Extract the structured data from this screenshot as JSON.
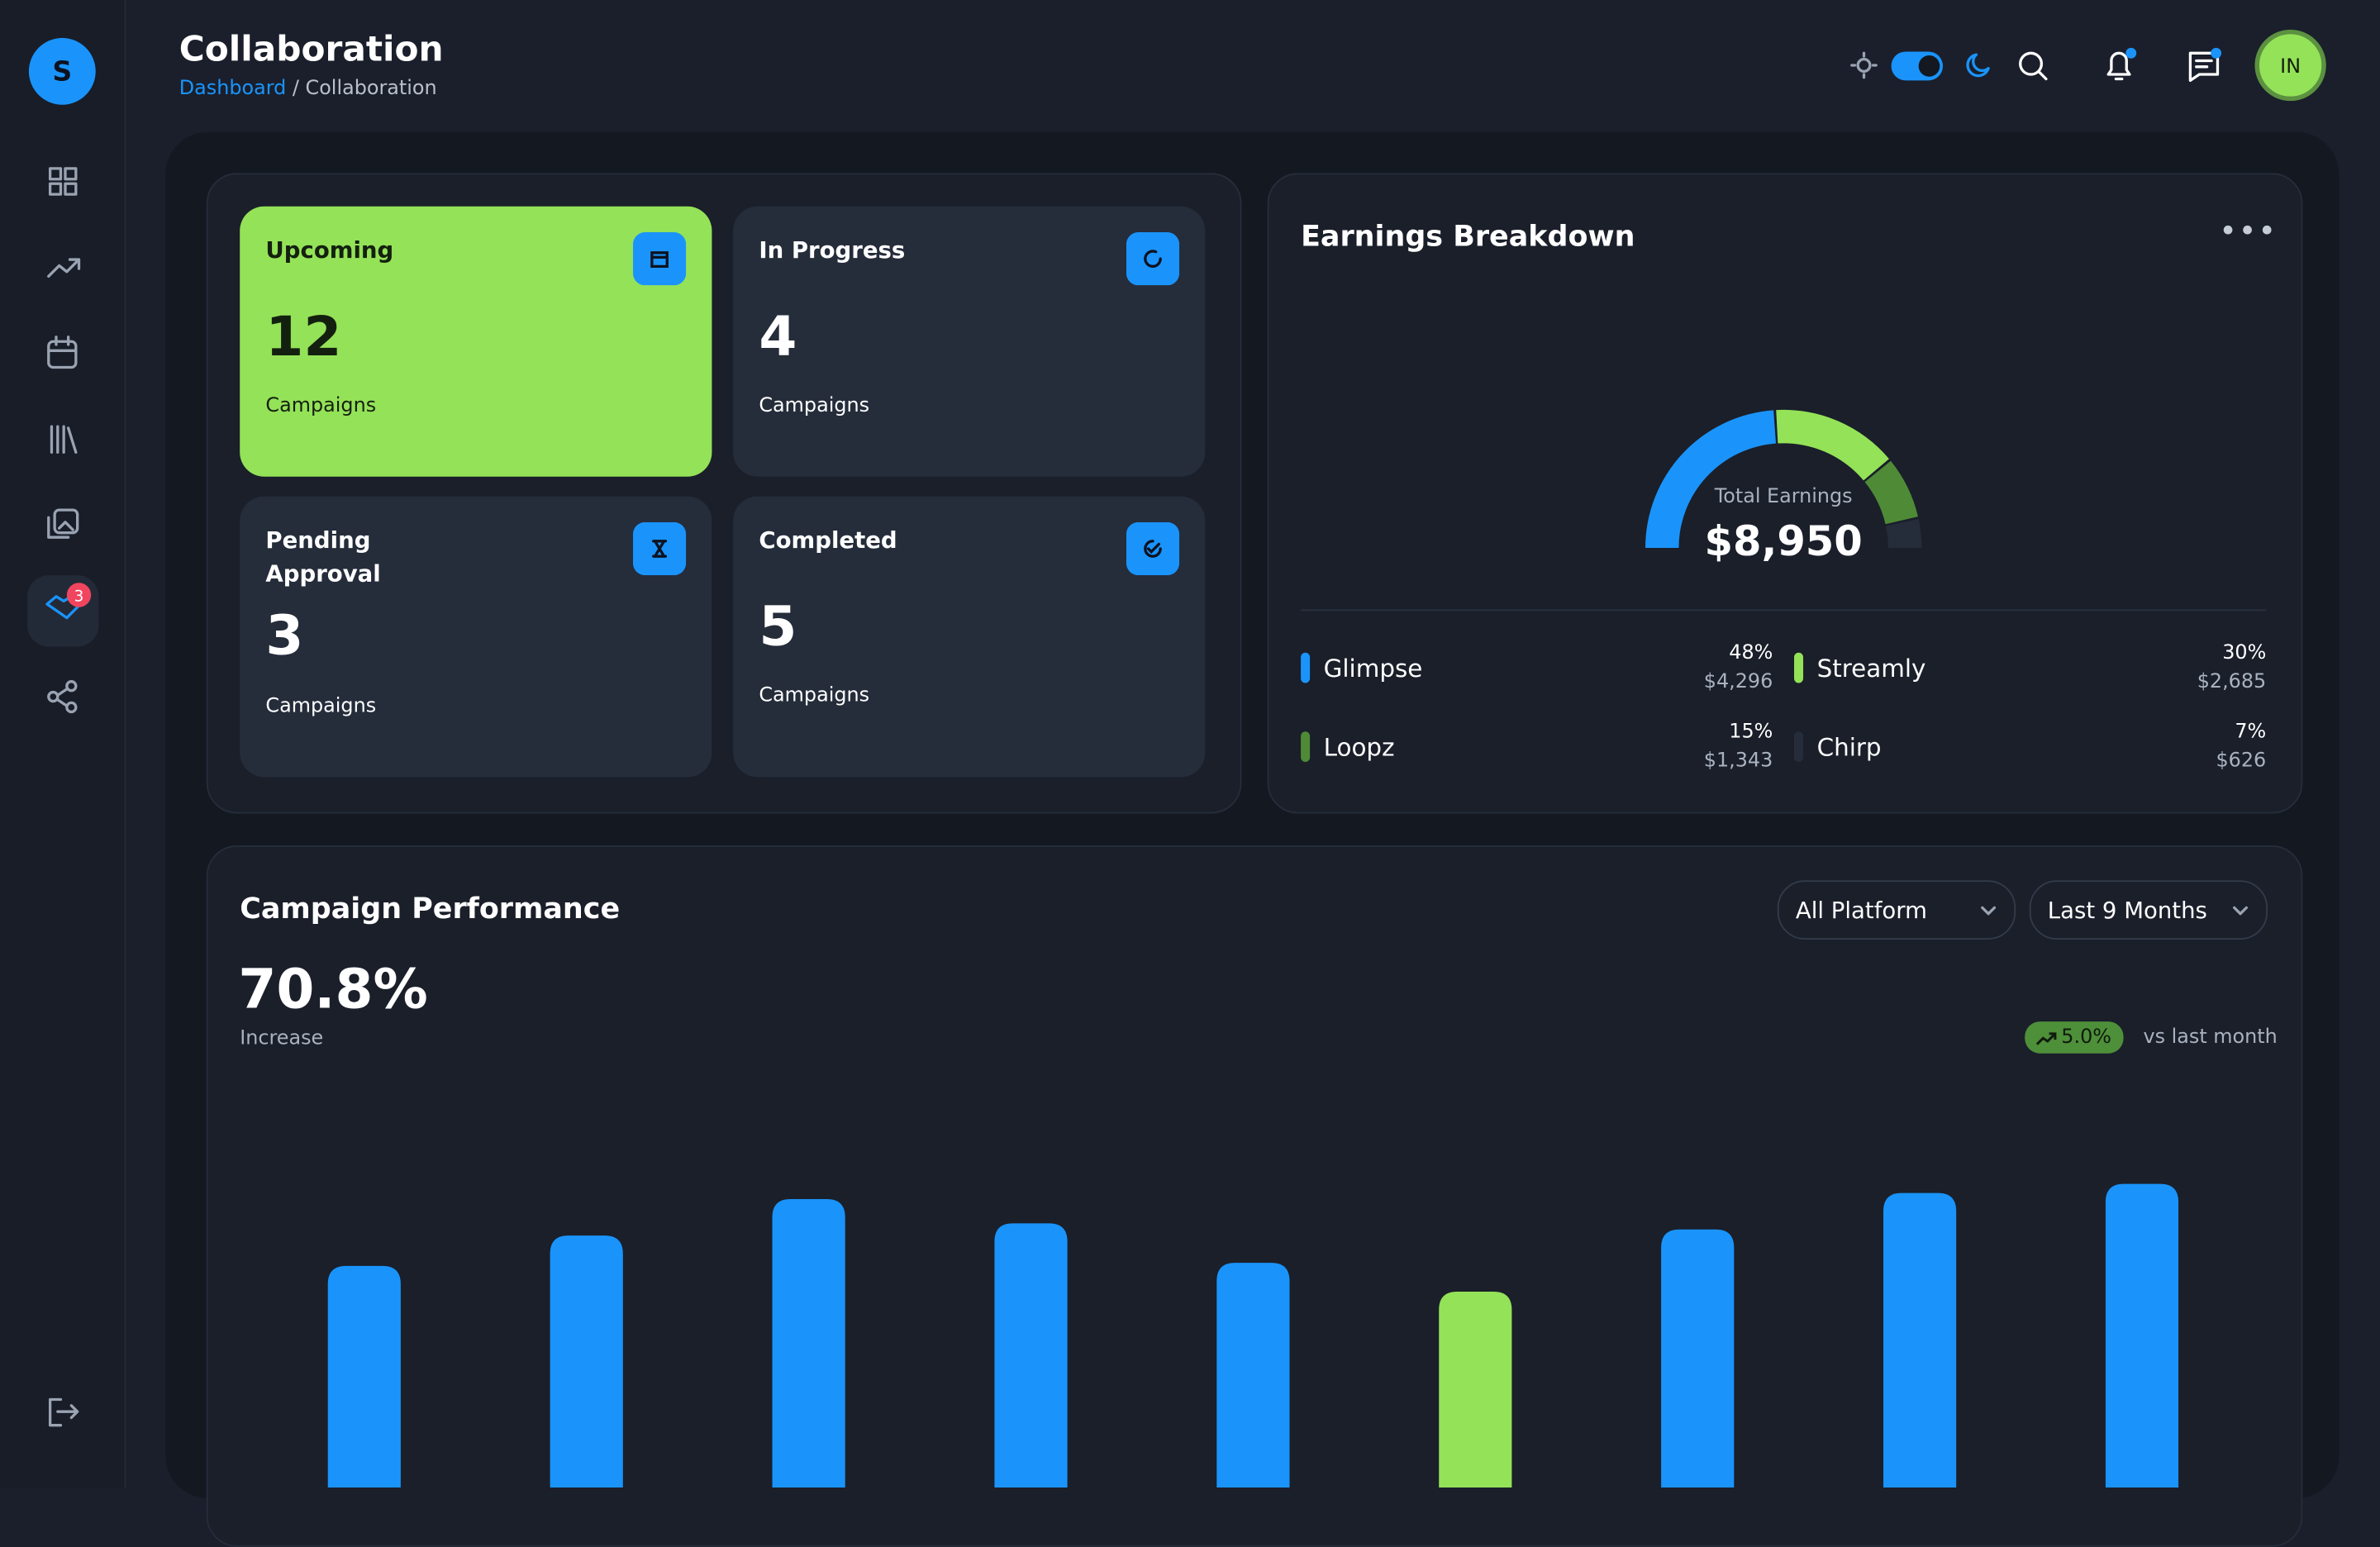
{
  "header": {
    "title": "Collaboration",
    "breadcrumb": [
      "Dashboard",
      "Collaboration"
    ]
  },
  "user": {
    "initials": "IN"
  },
  "sidebar": {
    "badge": 3
  },
  "stats": [
    {
      "label": "Upcoming",
      "value": 12,
      "unit": "Campaigns"
    },
    {
      "label": "In Progress",
      "value": 4,
      "unit": "Campaigns"
    },
    {
      "label": "Pending Approval",
      "value": 3,
      "unit": "Campaigns"
    },
    {
      "label": "Completed",
      "value": 5,
      "unit": "Campaigns"
    }
  ],
  "earnings": {
    "title": "Earnings Breakdown",
    "total_label": "Total Earnings",
    "total": "$8,950",
    "items": [
      {
        "name": "Glimpse",
        "value": 48,
        "value_label": "48%",
        "amount": "$4,296",
        "color": "#1a94fb"
      },
      {
        "name": "Streamly",
        "value": 30,
        "value_label": "30%",
        "amount": "$2,685",
        "color": "#94e258"
      },
      {
        "name": "Loopz",
        "value": 15,
        "value_label": "15%",
        "amount": "$1,343",
        "color": "#4f8a36"
      },
      {
        "name": "Chirp",
        "value": 7,
        "value_label": "7%",
        "amount": "$626",
        "color": "#262d3a"
      }
    ]
  },
  "performance": {
    "title": "Campaign Performance",
    "filters": [
      "All Platform",
      "Last 9 Months"
    ],
    "value": "70.8%",
    "caption": "Increase",
    "change": "5.0%",
    "change_caption": "vs last month"
  },
  "chart_data": {
    "type": "bar",
    "values": [
      146,
      166,
      190,
      174,
      148,
      129,
      170,
      194,
      200
    ],
    "colors": [
      "#1a94fb",
      "#1a94fb",
      "#1a94fb",
      "#1a94fb",
      "#1a94fb",
      "#94e258",
      "#1a94fb",
      "#1a94fb",
      "#1a94fb"
    ]
  }
}
